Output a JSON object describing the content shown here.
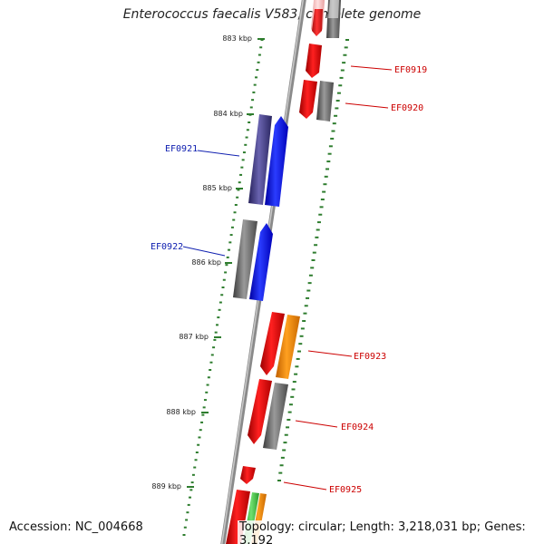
{
  "title": "Enterococcus faecalis V583, complete genome",
  "footer": {
    "accession": "Accession: NC_004668",
    "topology": "Topology: circular; Length: 3,218,031 bp; Genes: 3,192"
  },
  "colors": {
    "backbone": "#8a8a8a",
    "ticks": "#2e7d2e",
    "forward_label": "#1020b0",
    "reverse_label": "#cc0000"
  },
  "kbp_ticks": [
    "883 kbp",
    "884 kbp",
    "885 kbp",
    "886 kbp",
    "887 kbp",
    "888 kbp",
    "889 kbp"
  ],
  "gene_labels": [
    {
      "name": "EF0919",
      "side": "right"
    },
    {
      "name": "EF0920",
      "side": "right"
    },
    {
      "name": "EF0921",
      "side": "left"
    },
    {
      "name": "EF0922",
      "side": "left"
    },
    {
      "name": "EF0923",
      "side": "right"
    },
    {
      "name": "EF0924",
      "side": "right"
    },
    {
      "name": "EF0925",
      "side": "right"
    }
  ]
}
